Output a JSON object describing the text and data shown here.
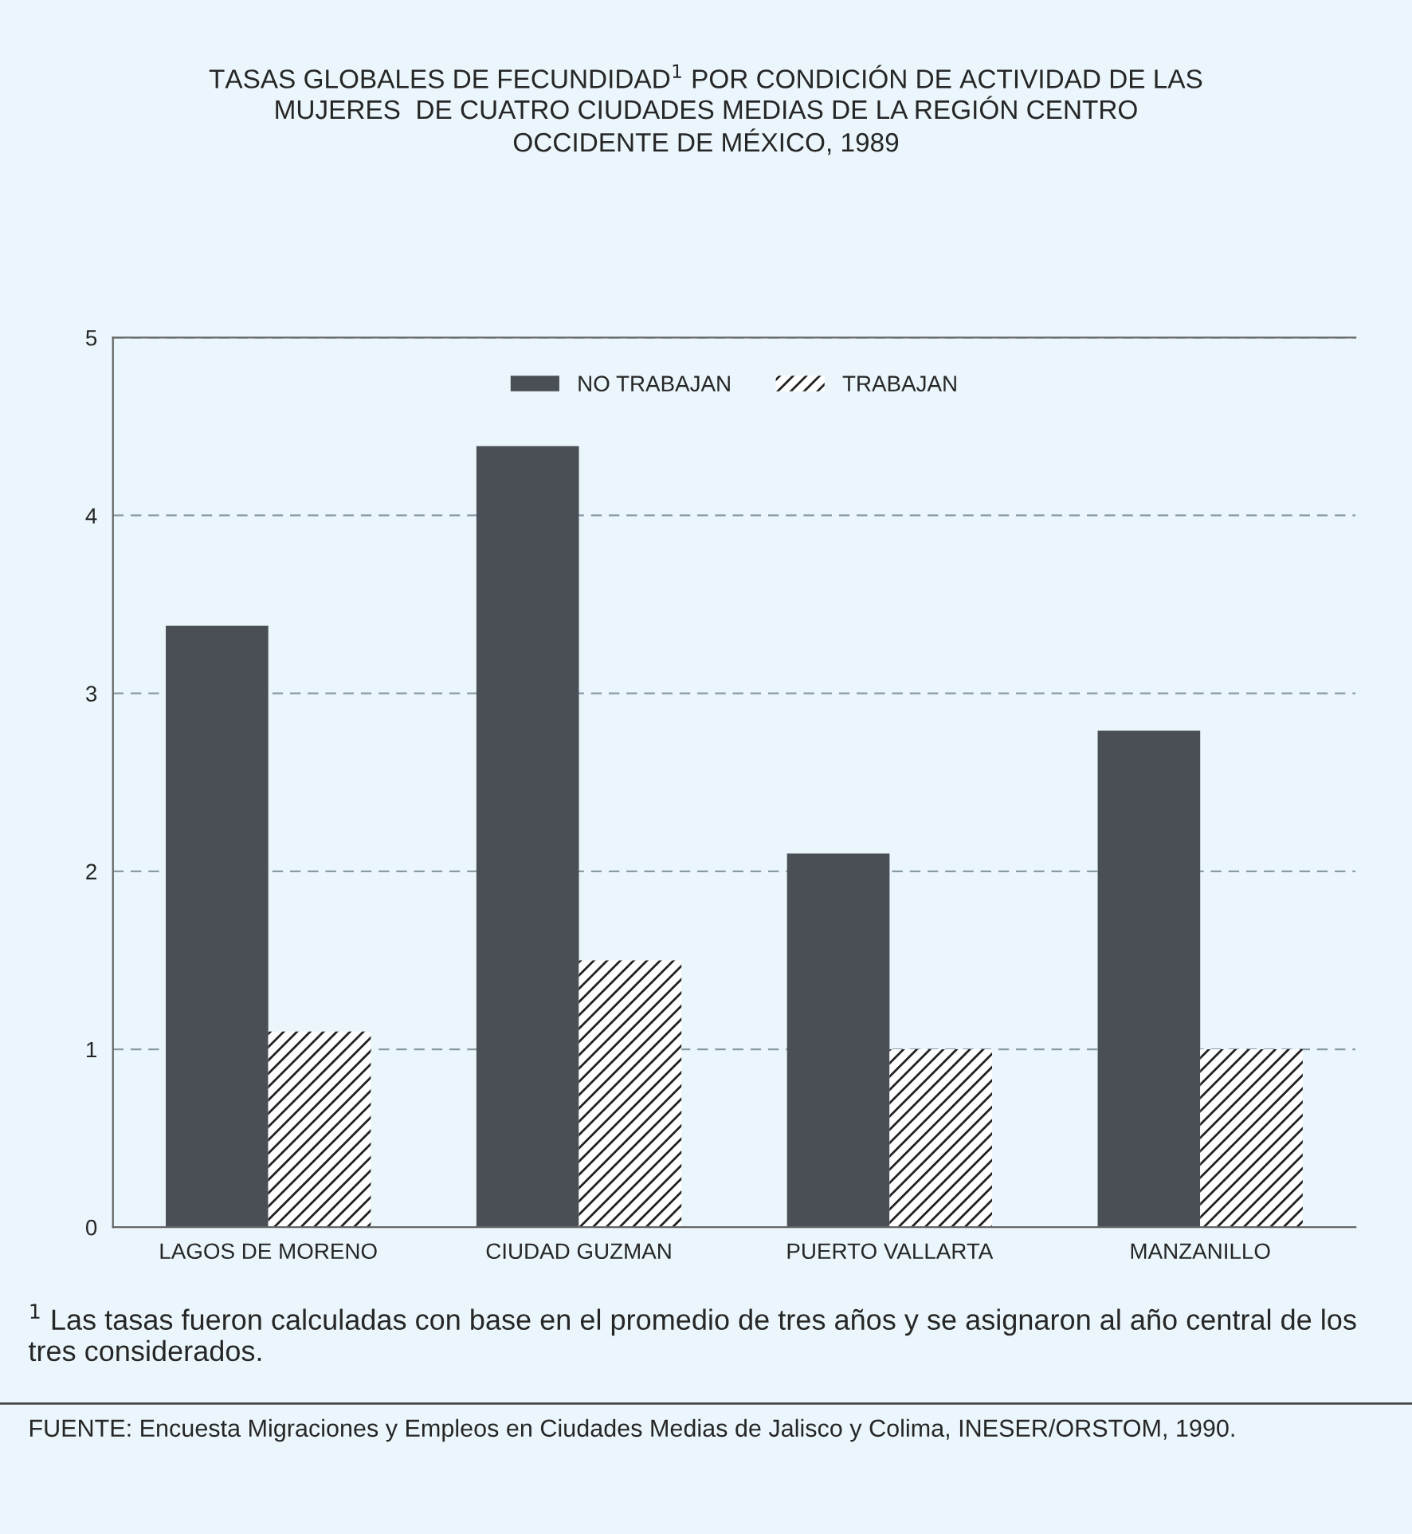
{
  "chart_data": {
    "type": "bar",
    "title": "TASAS GLOBALES DE FECUNDIDAD$^{1}$ POR CONDICIÓN DE ACTIVIDAD DE LAS\nMUJERES  DE CUATRO CIUDADES MEDIAS DE LA REGIÓN CENTRO\nOCCIDENTE DE MÉXICO, 1989",
    "categories": [
      "LAGOS DE MORENO",
      "CIUDAD GUZMAN",
      "PUERTO VALLARTA",
      "MANZANILLO"
    ],
    "series": [
      {
        "name": "NO TRABAJAN",
        "color": "#4a4f56",
        "values": [
          3.38,
          4.39,
          2.1,
          2.79
        ]
      },
      {
        "name": "TRABAJAN",
        "color": "#ffffff",
        "values": [
          1.1,
          1.5,
          1.0,
          1.0
        ]
      }
    ],
    "ylim": [
      0,
      5
    ],
    "yticks": [
      0,
      1,
      2,
      3,
      4,
      5
    ],
    "grid": "y",
    "legend": "top",
    "annotations": [
      "$^{1}$ Las tasas fueron calculadas con base en el promedio de tres años y se asignaron al año central de los tres considerados.",
      "FUENTE: Encuesta Migraciones y Empleos en Ciudades Medias de Jalisco y Colima, INESER/ORSTOM, 1990."
    ]
  }
}
